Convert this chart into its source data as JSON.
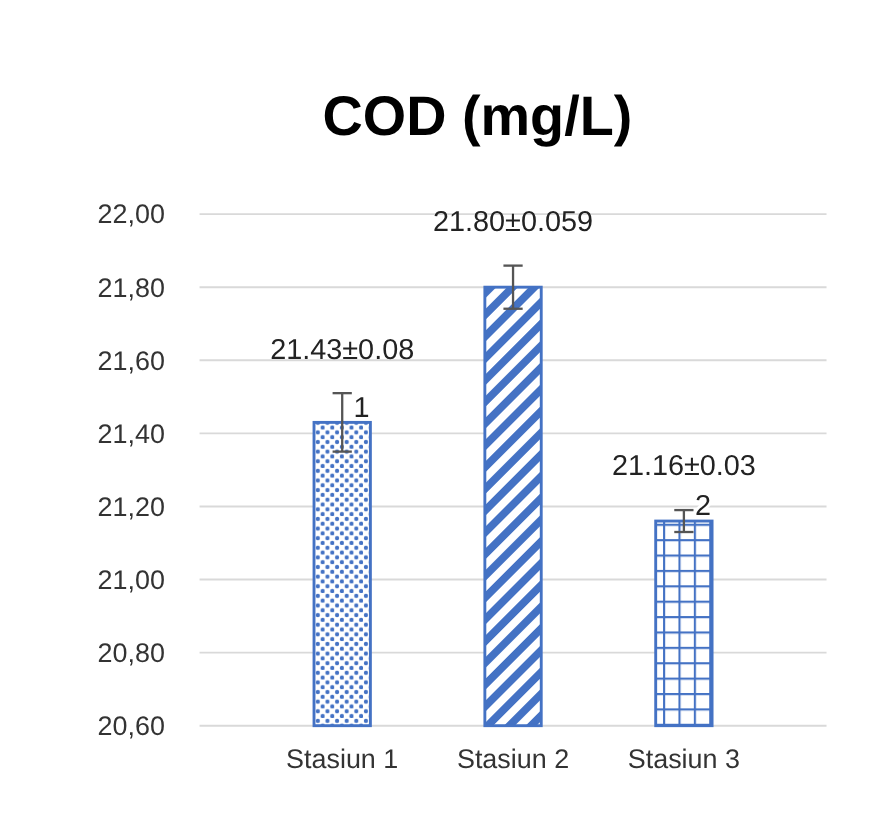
{
  "chart_data": {
    "type": "bar",
    "title": "COD (mg/L)",
    "categories": [
      "Stasiun 1",
      "Stasiun 2",
      "Stasiun 3"
    ],
    "values": [
      21.43,
      21.8,
      21.16
    ],
    "errors": [
      0.08,
      0.059,
      0.03
    ],
    "value_labels": [
      "21.43±0.08",
      "21.80±0.059",
      "21.16±0.03"
    ],
    "color": "#4472c4",
    "ylim": [
      20.6,
      22
    ],
    "yticks": [
      {
        "value": 20.6,
        "label": "20,60"
      },
      {
        "value": 20.8,
        "label": "20,80"
      },
      {
        "value": 21,
        "label": "21,00"
      },
      {
        "value": 21.2,
        "label": "21,20"
      },
      {
        "value": 21.4,
        "label": "21,40"
      },
      {
        "value": 21.6,
        "label": "21,60"
      },
      {
        "value": 21.8,
        "label": "21,80"
      },
      {
        "value": 22,
        "label": "22,00"
      }
    ],
    "grid": "y",
    "annotations": [
      {
        "text": "1",
        "x": "Stasiun 1",
        "y": 21.43
      },
      {
        "text": "2",
        "x": "Stasiun 3",
        "y": 21.16
      }
    ]
  }
}
